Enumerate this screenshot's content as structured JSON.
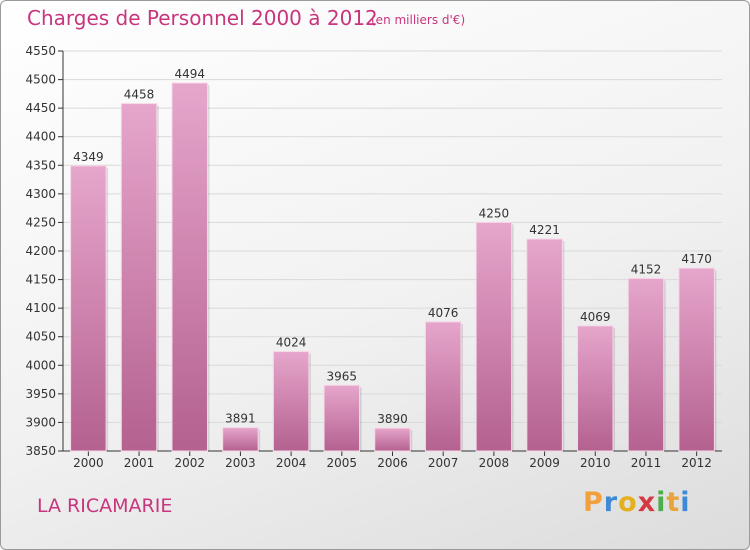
{
  "chart_data": {
    "type": "bar",
    "title": "Charges de Personnel 2000 à 2012",
    "subtitle": "(en milliers d'€)",
    "categories": [
      "2000",
      "2001",
      "2002",
      "2003",
      "2004",
      "2005",
      "2006",
      "2007",
      "2008",
      "2009",
      "2010",
      "2011",
      "2012"
    ],
    "values": [
      4349,
      4458,
      4494,
      3891,
      4024,
      3965,
      3890,
      4076,
      4250,
      4221,
      4069,
      4152,
      4170
    ],
    "ylim": [
      3850,
      4550
    ],
    "yticks": [
      3850,
      3900,
      3950,
      4000,
      4050,
      4100,
      4150,
      4200,
      4250,
      4300,
      4350,
      4400,
      4450,
      4500,
      4550
    ],
    "xlabel": "",
    "ylabel": "",
    "grid": true,
    "bar_color": "#d98ab5"
  },
  "footer": {
    "commune": "LA RICAMARIE",
    "logo": [
      "P",
      "r",
      "o",
      "x",
      "i",
      "t",
      "i"
    ],
    "logo_colors": [
      "#f0a03c",
      "#3e8ad6",
      "#e5b020",
      "#d6393f",
      "#4cae4c",
      "#e8a33b",
      "#3e8ad6"
    ]
  },
  "colors": {
    "title": "#c8357d",
    "axis": "#333333",
    "grid": "#d9d9d9"
  }
}
